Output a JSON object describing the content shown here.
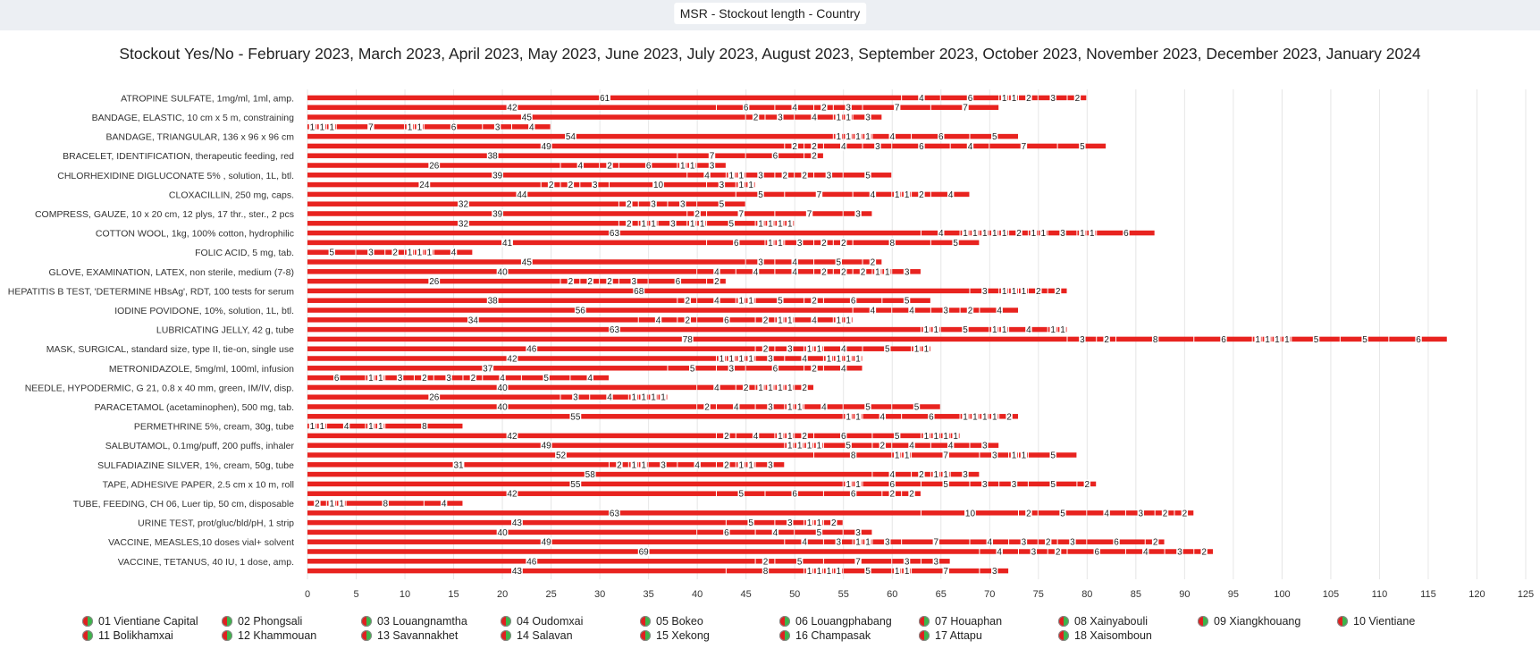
{
  "window": {
    "tab_title": "MSR - Stockout length - Country"
  },
  "chart_title": "Stockout Yes/No - February 2023, March 2023, April 2023, May 2023, June 2023, July 2023, August 2023, September 2023, October 2023, November 2023, December 2023, January 2024",
  "colors": {
    "bar": "#e8231f",
    "seg": "#ffffff",
    "grid": "#e6e6e6"
  },
  "chart_data": {
    "type": "bar",
    "orientation": "horizontal",
    "stacked": true,
    "xlim": [
      0,
      125
    ],
    "x_ticks": [
      0,
      5,
      10,
      15,
      20,
      25,
      30,
      35,
      40,
      45,
      50,
      55,
      60,
      65,
      70,
      75,
      80,
      85,
      90,
      95,
      100,
      105,
      110,
      115,
      120,
      125
    ],
    "grid": true,
    "legend_position": "bottom",
    "y_tick_labels": [
      "ATROPINE SULFATE, 1mg/ml, 1ml, amp.",
      "BANDAGE, ELASTIC, 10 cm x 5 m, constraining",
      "BANDAGE, TRIANGULAR, 136 x 96 x 96 cm",
      "BRACELET, IDENTIFICATION, therapeutic feeding, red",
      "CHLORHEXIDINE DIGLUCONATE 5% , solution, 1L, btl.",
      "CLOXACILLIN, 250 mg, caps.",
      "COMPRESS, GAUZE, 10 x 20 cm, 12 plys, 17 thr., ster., 2 pcs",
      "COTTON WOOL, 1kg, 100% cotton, hydrophilic",
      "FOLIC ACID, 5 mg, tab.",
      "GLOVE, EXAMINATION, LATEX, non sterile, medium (7-8)",
      "HEPATITIS B TEST, 'DETERMINE HBsAg', RDT, 100 tests for serum",
      "IODINE POVIDONE, 10%, solution, 1L, btl.",
      "LUBRICATING JELLY, 42 g, tube",
      "MASK, SURGICAL, standard size, type II, tie-on, single use",
      "METRONIDAZOLE, 5mg/ml, 100ml, infusion",
      "NEEDLE, HYPODERMIC, G 21, 0.8 x 40 mm, green, IM/IV, disp.",
      "PARACETAMOL (acetaminophen), 500 mg, tab.",
      "PERMETHRINE 5%, cream, 30g, tube",
      "SALBUTAMOL, 0.1mg/puff, 200 puffs, inhaler",
      "SULFADIAZINE SILVER, 1%, cream, 50g, tube",
      "TAPE, ADHESIVE PAPER, 2.5 cm x 10 m, roll",
      "TUBE, FEEDING, CH 06, Luer tip, 50 cm, disposable",
      "URINE TEST, prot/gluc/bld/pH, 1 strip",
      "VACCINE, MEASLES,10 doses vial+ solvent",
      "VACCINE, TETANUS, 40 IU, 1 dose, amp."
    ],
    "rows": [
      [
        61,
        4,
        6,
        1,
        1,
        2,
        3,
        2
      ],
      [
        42,
        6,
        4,
        2,
        3,
        7,
        7
      ],
      [
        45,
        2,
        3,
        4,
        1,
        1,
        3
      ],
      [
        1,
        1,
        1,
        7,
        1,
        1,
        6,
        3,
        4
      ],
      [
        54,
        1,
        1,
        1,
        1,
        4,
        6,
        5
      ],
      [
        49,
        2,
        2,
        4,
        3,
        6,
        4,
        7,
        5
      ],
      [
        38,
        7,
        6,
        2
      ],
      [
        26,
        4,
        2,
        6,
        1,
        1,
        3
      ],
      [
        39,
        4,
        1,
        1,
        3,
        2,
        2,
        3,
        5
      ],
      [
        24,
        2,
        2,
        3,
        10,
        3,
        1,
        1
      ],
      [
        44,
        5,
        7,
        4,
        1,
        1,
        2,
        4
      ],
      [
        32,
        2,
        3,
        3,
        5
      ],
      [
        39,
        2,
        7,
        7,
        3
      ],
      [
        32,
        2,
        1,
        1,
        3,
        1,
        1,
        5,
        1,
        1,
        1,
        1
      ],
      [
        63,
        4,
        1,
        1,
        1,
        1,
        1,
        2,
        1,
        1,
        3,
        1,
        1,
        6
      ],
      [
        41,
        6,
        1,
        1,
        3,
        2,
        2,
        8,
        5
      ],
      [
        5,
        3,
        2,
        1,
        1,
        1,
        4
      ],
      [
        45,
        3,
        4,
        5,
        2
      ],
      [
        40,
        4,
        4,
        4,
        2,
        2,
        2,
        1,
        1,
        3
      ],
      [
        26,
        2,
        2,
        2,
        3,
        6,
        2
      ],
      [
        68,
        3,
        1,
        1,
        1,
        2,
        2
      ],
      [
        38,
        2,
        4,
        1,
        1,
        5,
        2,
        6,
        5
      ],
      [
        56,
        4,
        4,
        3,
        2,
        4
      ],
      [
        34,
        4,
        2,
        6,
        2,
        1,
        1,
        4,
        1,
        1
      ],
      [
        63,
        1,
        1,
        5,
        1,
        1,
        4,
        1,
        1
      ],
      [
        78,
        3,
        2,
        8,
        6,
        1,
        1,
        1,
        1,
        5,
        5,
        6
      ],
      [
        46,
        2,
        3,
        1,
        1,
        4,
        5,
        1,
        1
      ],
      [
        42,
        1,
        1,
        1,
        1,
        3,
        4,
        1,
        1,
        1,
        1
      ],
      [
        37,
        5,
        3,
        6,
        2,
        4
      ],
      [
        6,
        1,
        1,
        3,
        2,
        3,
        2,
        4,
        5,
        4
      ],
      [
        40,
        4,
        2,
        1,
        1,
        1,
        1,
        2
      ],
      [
        26,
        3,
        4,
        1,
        1,
        1,
        1
      ],
      [
        40,
        2,
        4,
        3,
        1,
        1,
        4,
        5,
        5
      ],
      [
        55,
        1,
        1,
        4,
        6,
        1,
        1,
        1,
        1,
        2
      ],
      [
        1,
        1,
        4,
        1,
        1,
        8
      ],
      [
        42,
        2,
        4,
        1,
        1,
        2,
        6,
        5,
        1,
        1,
        1,
        1
      ],
      [
        49,
        1,
        1,
        1,
        1,
        5,
        2,
        4,
        4,
        3
      ],
      [
        52,
        8,
        1,
        1,
        7,
        3,
        1,
        1,
        5
      ],
      [
        31,
        2,
        1,
        1,
        3,
        4,
        2,
        1,
        1,
        3
      ],
      [
        58,
        4,
        2,
        1,
        1,
        3
      ],
      [
        55,
        1,
        1,
        6,
        5,
        3,
        3,
        5,
        2
      ],
      [
        42,
        5,
        6,
        6,
        2,
        2
      ],
      [
        2,
        1,
        1,
        8,
        4
      ],
      [
        63,
        10,
        2,
        5,
        4,
        3,
        2,
        2
      ],
      [
        43,
        5,
        3,
        1,
        1,
        2
      ],
      [
        40,
        6,
        4,
        5,
        3
      ],
      [
        49,
        4,
        3,
        1,
        1,
        3,
        7,
        4,
        3,
        2,
        3,
        6,
        2
      ],
      [
        69,
        4,
        3,
        2,
        6,
        4,
        3,
        2
      ],
      [
        46,
        2,
        5,
        7,
        3,
        3
      ],
      [
        43,
        8,
        1,
        1,
        1,
        1,
        5,
        1,
        1,
        7,
        3
      ]
    ],
    "legend": [
      "01 Vientiane Capital",
      "02 Phongsali",
      "03 Louangnamtha",
      "04 Oudomxai",
      "05 Bokeo",
      "06 Louangphabang",
      "07 Houaphan",
      "08 Xainyabouli",
      "09 Xiangkhouang",
      "10 Vientiane",
      "11 Bolikhamxai",
      "12 Khammouan",
      "13 Savannakhet",
      "14 Salavan",
      "15 Xekong",
      "16 Champasak",
      "17 Attapu",
      "18 Xaisomboun"
    ]
  }
}
